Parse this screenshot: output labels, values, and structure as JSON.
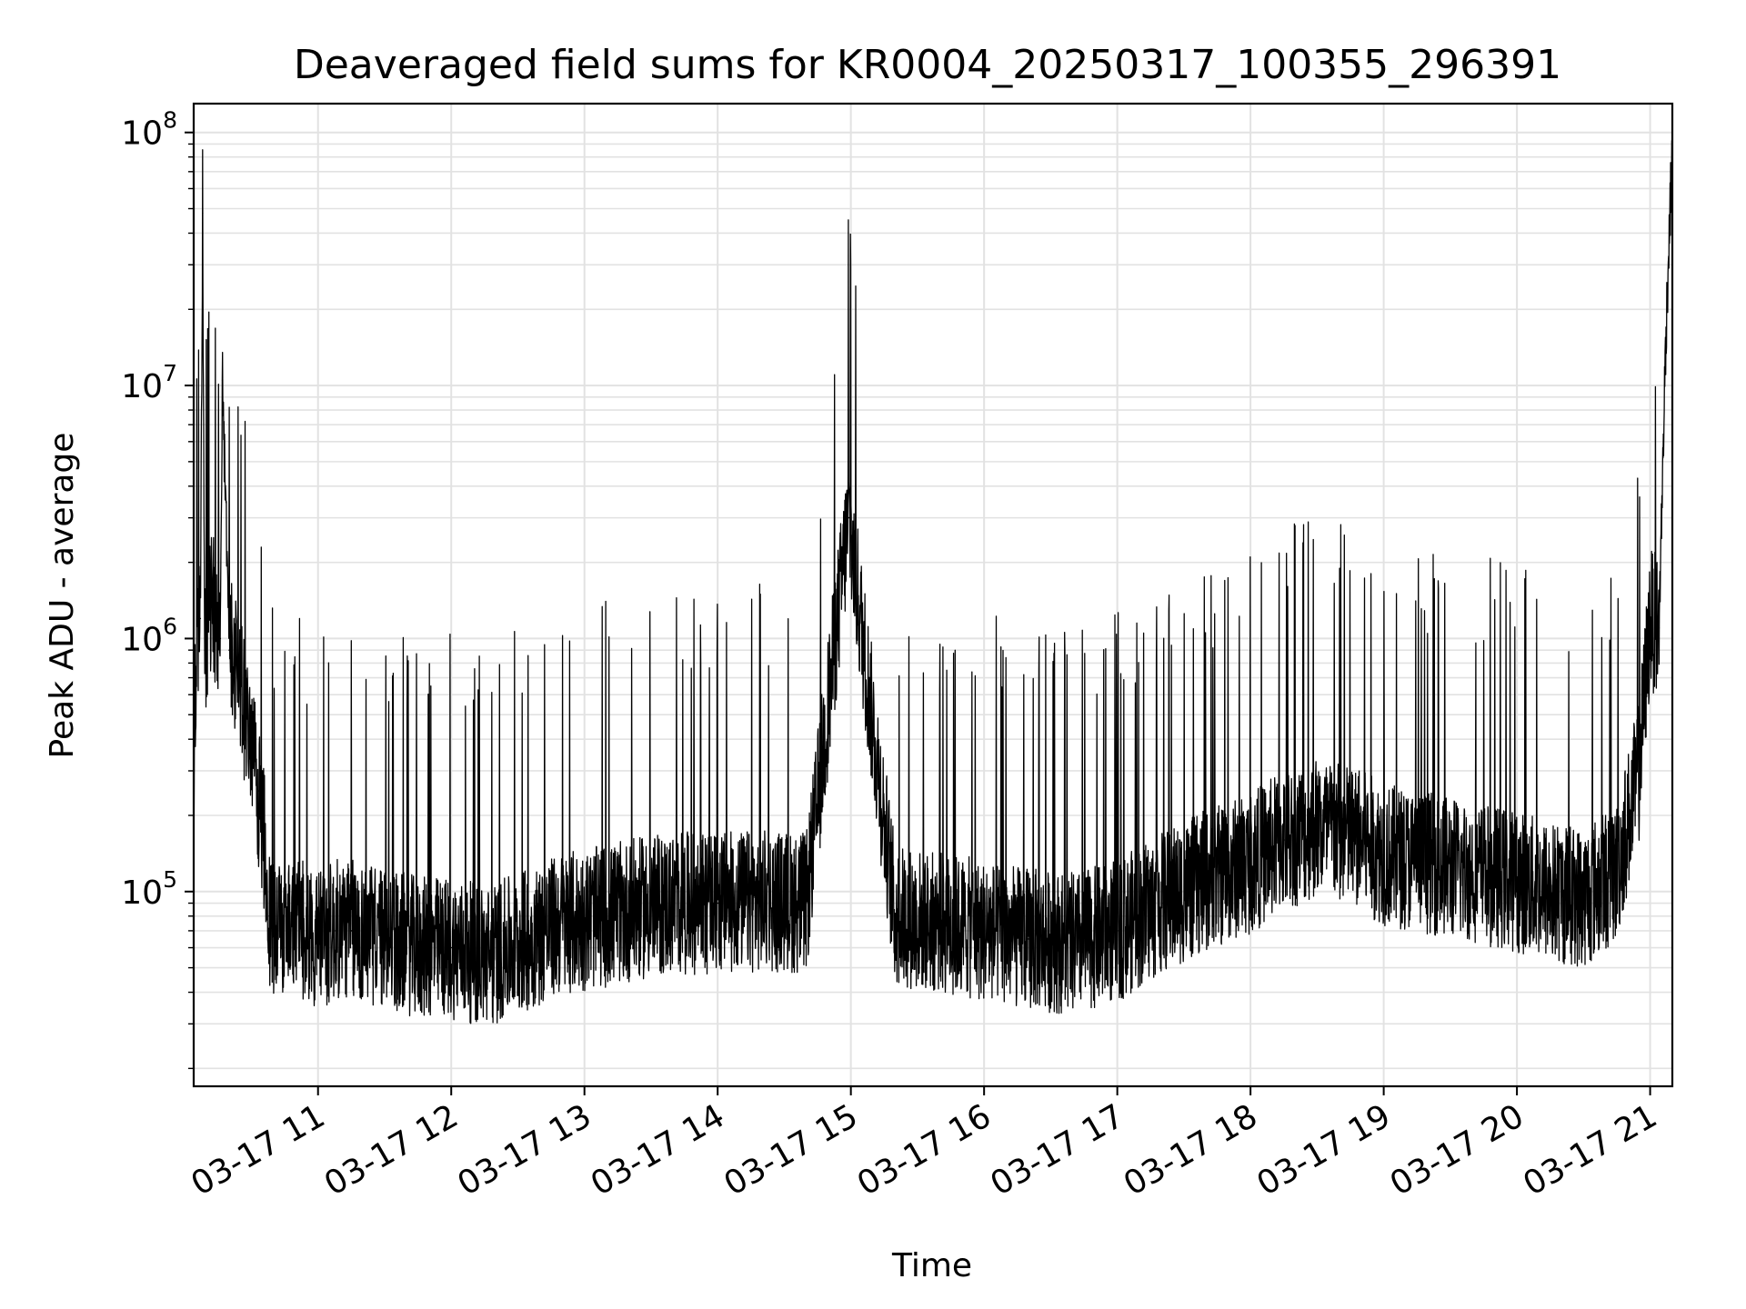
{
  "chart_data": {
    "type": "line",
    "title": "Deaveraged field sums for KR0004_20250317_100355_296391",
    "xlabel": "Time",
    "ylabel": "Peak ADU - average",
    "x_axis": {
      "kind": "time",
      "range": [
        "2025-03-17T10:04",
        "2025-03-17T21:10"
      ],
      "ticks": [
        "03-17 11",
        "03-17 12",
        "03-17 13",
        "03-17 14",
        "03-17 15",
        "03-17 16",
        "03-17 17",
        "03-17 18",
        "03-17 19",
        "03-17 20",
        "03-17 21"
      ]
    },
    "y_axis": {
      "scale": "log",
      "range": [
        17000,
        130000000
      ],
      "tick_base": "10",
      "tick_exponents": [
        "5",
        "6",
        "7",
        "8"
      ]
    },
    "grid": true,
    "legend": "none",
    "line_color": "#000000",
    "series": [
      {
        "x": [
          "2025-03-17T10:04",
          "2025-03-17T10:05",
          "2025-03-17T10:07",
          "2025-03-17T10:08",
          "2025-03-17T10:09",
          "2025-03-17T10:12",
          "2025-03-17T10:16",
          "2025-03-17T10:17",
          "2025-03-17T10:20",
          "2025-03-17T10:24",
          "2025-03-17T10:27",
          "2025-03-17T10:30",
          "2025-03-17T10:33",
          "2025-03-17T10:36",
          "2025-03-17T10:38",
          "2025-03-17T10:42",
          "2025-03-17T10:47",
          "2025-03-17T10:53",
          "2025-03-17T11:00",
          "2025-03-17T11:08",
          "2025-03-17T11:12",
          "2025-03-17T11:15",
          "2025-03-17T11:22",
          "2025-03-17T11:32",
          "2025-03-17T11:45",
          "2025-03-17T12:00",
          "2025-03-17T12:18",
          "2025-03-17T12:22",
          "2025-03-17T12:35",
          "2025-03-17T12:50",
          "2025-03-17T13:10",
          "2025-03-17T13:23",
          "2025-03-17T13:40",
          "2025-03-17T14:00",
          "2025-03-17T14:20",
          "2025-03-17T14:40",
          "2025-03-17T14:59",
          "2025-03-17T15:20",
          "2025-03-17T15:40",
          "2025-03-17T16:00",
          "2025-03-17T16:20",
          "2025-03-17T16:40",
          "2025-03-17T17:00",
          "2025-03-17T17:20",
          "2025-03-17T17:40",
          "2025-03-17T18:00",
          "2025-03-17T18:15",
          "2025-03-17T18:30",
          "2025-03-17T18:50",
          "2025-03-17T19:00",
          "2025-03-17T19:20",
          "2025-03-17T19:40",
          "2025-03-17T20:00",
          "2025-03-17T20:15",
          "2025-03-17T20:30",
          "2025-03-17T20:45",
          "2025-03-17T20:55",
          "2025-03-17T21:00",
          "2025-03-17T21:04",
          "2025-03-17T21:07",
          "2025-03-17T21:10"
        ],
        "y": [
          300000,
          700000,
          1200000,
          48000000,
          900000,
          1500000,
          1000000,
          10500000,
          900000,
          800000,
          500000,
          350000,
          250000,
          150000,
          80000,
          70000,
          75000,
          70000,
          65000,
          70000,
          72000,
          70000,
          68000,
          65000,
          60000,
          60000,
          55000,
          58000,
          65000,
          75000,
          80000,
          85000,
          90000,
          90000,
          92000,
          90000,
          3000000,
          80000,
          75000,
          70000,
          65000,
          62000,
          70000,
          90000,
          110000,
          130000,
          160000,
          180000,
          160000,
          140000,
          130000,
          120000,
          110000,
          100000,
          95000,
          120000,
          300000,
          1200000,
          1100000,
          15000000,
          90000000
        ]
      }
    ],
    "spikes_note": ""
  }
}
